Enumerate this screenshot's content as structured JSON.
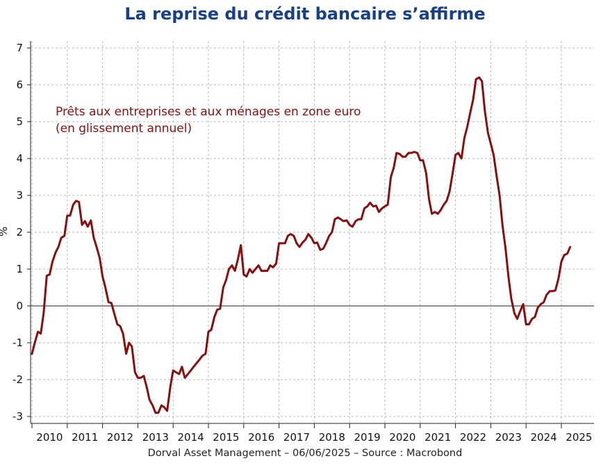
{
  "title": "La reprise du crédit bancaire s’affirme",
  "footer": "Dorval Asset Management – 06/06/2025  –   Source : Macrobond",
  "chart_data": {
    "type": "line",
    "title": "La reprise du crédit bancaire s’affirme",
    "ylabel": "%",
    "annotation": [
      "Prêts aux entreprises et aux ménages en zone euro",
      "(en glissement annuel)"
    ],
    "ylim": [
      -3.2,
      7.3
    ],
    "xlim": [
      2010,
      2025.95
    ],
    "yticks": [
      -3,
      -2,
      -1,
      0,
      1,
      2,
      3,
      4,
      5,
      6,
      7
    ],
    "xticks": [
      "2010",
      "2011",
      "2012",
      "2013",
      "2014",
      "2015",
      "2016",
      "2017",
      "2018",
      "2019",
      "2020",
      "2021",
      "2022",
      "2023",
      "2024",
      "2025"
    ],
    "grid": true,
    "zero_line": true,
    "line_color": "#8b0d0d",
    "annotation_color": "#8b0d0d",
    "series": [
      {
        "x": [
          2010.0,
          2010.08,
          2010.17,
          2010.25,
          2010.33,
          2010.42,
          2010.5,
          2010.58,
          2010.67,
          2010.75,
          2010.83,
          2010.92,
          2011.0,
          2011.08,
          2011.17,
          2011.25,
          2011.33,
          2011.42,
          2011.5,
          2011.58,
          2011.67,
          2011.75,
          2011.83,
          2011.92,
          2012.0,
          2012.08,
          2012.17,
          2012.25,
          2012.33,
          2012.42,
          2012.5,
          2012.58,
          2012.67,
          2012.75,
          2012.83,
          2012.92,
          2013.0,
          2013.08,
          2013.17,
          2013.25,
          2013.33,
          2013.42,
          2013.5,
          2013.58,
          2013.67,
          2013.75,
          2013.83,
          2013.92,
          2014.0,
          2014.08,
          2014.17,
          2014.25,
          2014.33,
          2014.42,
          2014.5,
          2014.58,
          2014.67,
          2014.75,
          2014.83,
          2014.92,
          2015.0,
          2015.08,
          2015.17,
          2015.25,
          2015.33,
          2015.42,
          2015.5,
          2015.58,
          2015.67,
          2015.75,
          2015.83,
          2015.92,
          2016.0,
          2016.08,
          2016.17,
          2016.25,
          2016.33,
          2016.42,
          2016.5,
          2016.58,
          2016.67,
          2016.75,
          2016.83,
          2016.92,
          2017.0,
          2017.08,
          2017.17,
          2017.25,
          2017.33,
          2017.42,
          2017.5,
          2017.58,
          2017.67,
          2017.75,
          2017.83,
          2017.92,
          2018.0,
          2018.08,
          2018.17,
          2018.25,
          2018.33,
          2018.42,
          2018.5,
          2018.58,
          2018.67,
          2018.75,
          2018.83,
          2018.92,
          2019.0,
          2019.08,
          2019.17,
          2019.25,
          2019.33,
          2019.42,
          2019.5,
          2019.58,
          2019.67,
          2019.75,
          2019.83,
          2019.92,
          2020.0,
          2020.08,
          2020.17,
          2020.25,
          2020.33,
          2020.42,
          2020.5,
          2020.58,
          2020.67,
          2020.75,
          2020.83,
          2020.92,
          2021.0,
          2021.08,
          2021.17,
          2021.25,
          2021.33,
          2021.42,
          2021.5,
          2021.58,
          2021.67,
          2021.75,
          2021.83,
          2021.92,
          2022.0,
          2022.08,
          2022.17,
          2022.25,
          2022.33,
          2022.42,
          2022.5,
          2022.58,
          2022.67,
          2022.75,
          2022.83,
          2022.92,
          2023.0,
          2023.08,
          2023.17,
          2023.25,
          2023.33,
          2023.42,
          2023.5,
          2023.58,
          2023.67,
          2023.75,
          2023.83,
          2023.92,
          2024.0,
          2024.08,
          2024.17,
          2024.25,
          2024.33,
          2024.42,
          2024.5,
          2024.58,
          2024.67,
          2024.75,
          2024.83,
          2024.92,
          2025.0,
          2025.08,
          2025.17,
          2025.25
        ],
        "values": [
          -1.3,
          -1.0,
          -0.7,
          -0.75,
          -0.2,
          0.82,
          0.85,
          1.2,
          1.45,
          1.6,
          1.85,
          1.9,
          2.45,
          2.45,
          2.75,
          2.85,
          2.82,
          2.2,
          2.3,
          2.15,
          2.32,
          1.85,
          1.6,
          1.3,
          0.8,
          0.5,
          0.1,
          0.08,
          -0.2,
          -0.5,
          -0.55,
          -0.75,
          -1.3,
          -1.0,
          -1.1,
          -1.8,
          -1.95,
          -1.95,
          -1.9,
          -2.2,
          -2.55,
          -2.7,
          -2.9,
          -2.9,
          -2.7,
          -2.75,
          -2.85,
          -2.2,
          -1.75,
          -1.8,
          -1.85,
          -1.65,
          -1.95,
          -1.85,
          -1.75,
          -1.65,
          -1.55,
          -1.45,
          -1.35,
          -1.3,
          -0.7,
          -0.65,
          -0.3,
          -0.1,
          -0.08,
          0.5,
          0.7,
          1.0,
          1.1,
          0.95,
          1.25,
          1.65,
          0.85,
          0.8,
          1.0,
          0.9,
          1.0,
          1.1,
          0.95,
          0.95,
          0.95,
          1.1,
          1.05,
          1.15,
          1.7,
          1.7,
          1.7,
          1.9,
          1.95,
          1.9,
          1.7,
          1.6,
          1.72,
          1.8,
          1.95,
          1.85,
          1.7,
          1.72,
          1.52,
          1.55,
          1.7,
          1.9,
          2.0,
          2.35,
          2.4,
          2.35,
          2.3,
          2.32,
          2.2,
          2.15,
          2.3,
          2.35,
          2.35,
          2.65,
          2.7,
          2.8,
          2.7,
          2.72,
          2.55,
          2.65,
          2.7,
          2.75,
          3.5,
          3.75,
          4.15,
          4.12,
          4.05,
          4.05,
          4.15,
          4.15,
          4.18,
          4.15,
          3.95,
          3.95,
          3.6,
          2.9,
          2.5,
          2.55,
          2.5,
          2.6,
          2.75,
          2.85,
          3.1,
          3.6,
          4.1,
          4.15,
          4.0,
          4.55,
          4.85,
          5.25,
          5.6,
          6.15,
          6.2,
          6.1,
          5.3,
          4.7,
          4.4,
          4.1,
          3.5,
          3.0,
          2.2,
          1.55,
          0.8,
          0.2,
          -0.2,
          -0.35,
          -0.15,
          0.05,
          -0.5,
          -0.5,
          -0.35,
          -0.3,
          -0.05,
          0.05,
          0.1,
          0.3,
          0.4,
          0.4,
          0.42,
          0.75,
          1.2,
          1.38,
          1.42,
          1.6
        ]
      }
    ]
  }
}
